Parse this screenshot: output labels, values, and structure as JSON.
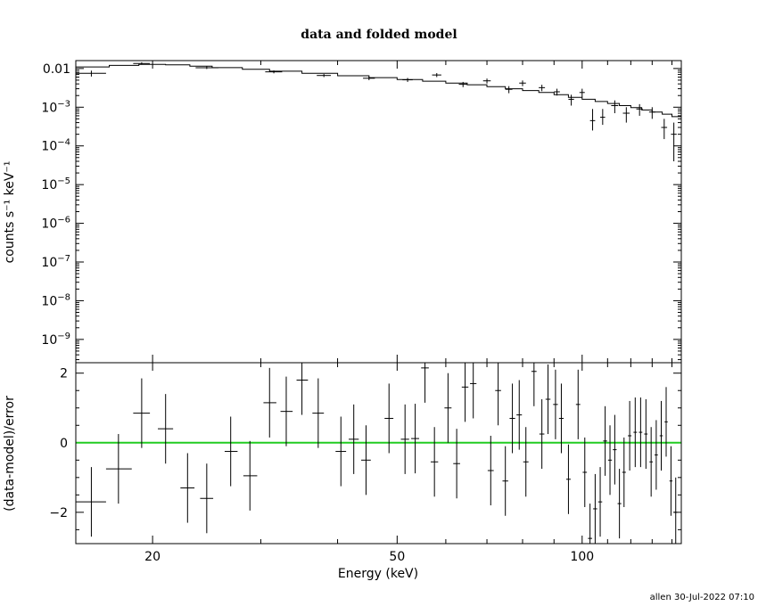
{
  "chart_data": [
    {
      "type": "scatter",
      "title": "data and folded model",
      "ylabel": "counts s⁻¹ keV⁻¹",
      "xlabel": "",
      "x_scale": "log",
      "y_scale": "log",
      "xlim": [
        15,
        145
      ],
      "ylim": [
        2.5e-10,
        0.016
      ],
      "y_ticks": [
        {
          "value": 0.01,
          "base": "0.01",
          "exp": ""
        },
        {
          "value": 0.001,
          "base": "10",
          "exp": "−3"
        },
        {
          "value": 0.0001,
          "base": "10",
          "exp": "−4"
        },
        {
          "value": 1e-05,
          "base": "10",
          "exp": "−5"
        },
        {
          "value": 1e-06,
          "base": "10",
          "exp": "−6"
        },
        {
          "value": 1e-07,
          "base": "10",
          "exp": "−7"
        },
        {
          "value": 1e-08,
          "base": "10",
          "exp": "−8"
        },
        {
          "value": 1e-09,
          "base": "10",
          "exp": "−9"
        }
      ],
      "series": [
        {
          "kind": "data",
          "points": [
            {
              "x": 15.9,
              "xlo": 15.0,
              "xhi": 16.8,
              "y": 0.0075,
              "ylo": 0.0062,
              "yhi": 0.0088
            },
            {
              "x": 19.2,
              "xlo": 18.6,
              "xhi": 19.8,
              "y": 0.0135,
              "ylo": 0.0125,
              "yhi": 0.0145
            },
            {
              "x": 24.5,
              "xlo": 23.5,
              "xhi": 25.6,
              "y": 0.0105,
              "ylo": 0.0097,
              "yhi": 0.0113
            },
            {
              "x": 31.5,
              "xlo": 30.5,
              "xhi": 32.5,
              "y": 0.0082,
              "ylo": 0.0075,
              "yhi": 0.0089
            },
            {
              "x": 38.0,
              "xlo": 37.0,
              "xhi": 39.0,
              "y": 0.0066,
              "ylo": 0.006,
              "yhi": 0.0072
            },
            {
              "x": 45.0,
              "xlo": 44.0,
              "xhi": 46.0,
              "y": 0.0056,
              "ylo": 0.005,
              "yhi": 0.0062
            },
            {
              "x": 52.0,
              "xlo": 51.0,
              "xhi": 53.0,
              "y": 0.0051,
              "ylo": 0.0045,
              "yhi": 0.0057
            },
            {
              "x": 58.0,
              "xlo": 57.0,
              "xhi": 59.0,
              "y": 0.0068,
              "ylo": 0.006,
              "yhi": 0.0076
            },
            {
              "x": 64.0,
              "xlo": 63.0,
              "xhi": 65.0,
              "y": 0.0039,
              "ylo": 0.0033,
              "yhi": 0.0045
            },
            {
              "x": 70.0,
              "xlo": 69.0,
              "xhi": 71.0,
              "y": 0.0048,
              "ylo": 0.0041,
              "yhi": 0.0055
            },
            {
              "x": 76.0,
              "xlo": 75.0,
              "xhi": 77.0,
              "y": 0.0029,
              "ylo": 0.0023,
              "yhi": 0.0035
            },
            {
              "x": 80.0,
              "xlo": 79.0,
              "xhi": 81.0,
              "y": 0.0042,
              "ylo": 0.0035,
              "yhi": 0.0049
            },
            {
              "x": 86.0,
              "xlo": 85.0,
              "xhi": 87.0,
              "y": 0.0032,
              "ylo": 0.0026,
              "yhi": 0.0038
            },
            {
              "x": 91.0,
              "xlo": 90.0,
              "xhi": 92.0,
              "y": 0.0025,
              "ylo": 0.002,
              "yhi": 0.003
            },
            {
              "x": 96.0,
              "xlo": 95.0,
              "xhi": 97.0,
              "y": 0.0016,
              "ylo": 0.0011,
              "yhi": 0.0021
            },
            {
              "x": 100.0,
              "xlo": 99.0,
              "xhi": 101.0,
              "y": 0.0024,
              "ylo": 0.0018,
              "yhi": 0.003
            },
            {
              "x": 104.0,
              "xlo": 103.0,
              "xhi": 105.0,
              "y": 0.00045,
              "ylo": 0.00025,
              "yhi": 0.0009
            },
            {
              "x": 108.0,
              "xlo": 107.0,
              "xhi": 109.0,
              "y": 0.00055,
              "ylo": 0.00035,
              "yhi": 0.0009
            },
            {
              "x": 113.0,
              "xlo": 111.5,
              "xhi": 114.5,
              "y": 0.0011,
              "ylo": 0.0007,
              "yhi": 0.0015
            },
            {
              "x": 118.0,
              "xlo": 116.5,
              "xhi": 119.5,
              "y": 0.0007,
              "ylo": 0.0004,
              "yhi": 0.001
            },
            {
              "x": 124.0,
              "xlo": 122.5,
              "xhi": 125.5,
              "y": 0.0009,
              "ylo": 0.0006,
              "yhi": 0.0012
            },
            {
              "x": 130.0,
              "xlo": 128.5,
              "xhi": 131.5,
              "y": 0.00075,
              "ylo": 0.0005,
              "yhi": 0.001
            },
            {
              "x": 136.0,
              "xlo": 134.5,
              "xhi": 137.5,
              "y": 0.0003,
              "ylo": 0.00015,
              "yhi": 0.0005
            },
            {
              "x": 141.0,
              "xlo": 139.5,
              "xhi": 142.5,
              "y": 0.0002,
              "ylo": 4e-05,
              "yhi": 0.0004
            }
          ]
        },
        {
          "kind": "model",
          "x": [
            15.0,
            17.0,
            19.0,
            21.0,
            23.0,
            25.0,
            28.0,
            31.0,
            35.0,
            40.0,
            45.0,
            50.0,
            55.0,
            60.0,
            65.0,
            70.0,
            75.0,
            80.0,
            85.0,
            90.0,
            95.0,
            100.0,
            105.0,
            110.0,
            115.0,
            120.0,
            125.0,
            130.0,
            135.0,
            140.0,
            145.0
          ],
          "y": [
            0.011,
            0.012,
            0.0128,
            0.0125,
            0.0115,
            0.0105,
            0.0095,
            0.0085,
            0.0075,
            0.0065,
            0.0058,
            0.0052,
            0.0047,
            0.0042,
            0.0038,
            0.0034,
            0.003,
            0.0027,
            0.0024,
            0.0021,
            0.0018,
            0.0016,
            0.0014,
            0.00125,
            0.0011,
            0.00098,
            0.00085,
            0.00075,
            0.00066,
            0.00057,
            0.0005
          ]
        }
      ]
    },
    {
      "type": "scatter",
      "ylabel": "(data-model)/error",
      "xlabel": "Energy (keV)",
      "x_scale": "log",
      "xlim": [
        15,
        145
      ],
      "ylim": [
        -2.9,
        2.3
      ],
      "y_ticks": [
        {
          "value": 2,
          "label": "2"
        },
        {
          "value": 0,
          "label": "0"
        },
        {
          "value": -2,
          "label": "−2"
        }
      ],
      "x_ticks": [
        {
          "value": 20,
          "label": "20"
        },
        {
          "value": 50,
          "label": "50"
        },
        {
          "value": 100,
          "label": "100"
        }
      ],
      "zero_line": {
        "y": 0,
        "color": "#22cc22"
      },
      "points": [
        {
          "x": 15.9,
          "xlo": 15.0,
          "xhi": 16.8,
          "y": -1.7,
          "ylo": -2.7,
          "yhi": -0.7
        },
        {
          "x": 17.6,
          "xlo": 16.8,
          "xhi": 18.5,
          "y": -0.75,
          "ylo": -1.75,
          "yhi": 0.25
        },
        {
          "x": 19.2,
          "xlo": 18.6,
          "xhi": 19.8,
          "y": 0.85,
          "ylo": -0.15,
          "yhi": 1.85
        },
        {
          "x": 21.0,
          "xlo": 20.4,
          "xhi": 21.6,
          "y": 0.4,
          "ylo": -0.6,
          "yhi": 1.4
        },
        {
          "x": 22.8,
          "xlo": 22.2,
          "xhi": 23.4,
          "y": -1.3,
          "ylo": -2.3,
          "yhi": -0.3
        },
        {
          "x": 24.5,
          "xlo": 23.9,
          "xhi": 25.1,
          "y": -1.6,
          "ylo": -2.6,
          "yhi": -0.6
        },
        {
          "x": 26.8,
          "xlo": 26.2,
          "xhi": 27.5,
          "y": -0.25,
          "ylo": -1.25,
          "yhi": 0.75
        },
        {
          "x": 28.8,
          "xlo": 28.1,
          "xhi": 29.6,
          "y": -0.95,
          "ylo": -1.95,
          "yhi": 0.05
        },
        {
          "x": 31.0,
          "xlo": 30.3,
          "xhi": 31.8,
          "y": 1.15,
          "ylo": 0.15,
          "yhi": 2.15
        },
        {
          "x": 33.0,
          "xlo": 32.3,
          "xhi": 33.8,
          "y": 0.9,
          "ylo": -0.1,
          "yhi": 1.9
        },
        {
          "x": 35.0,
          "xlo": 34.3,
          "xhi": 35.8,
          "y": 1.8,
          "ylo": 0.8,
          "yhi": 2.8
        },
        {
          "x": 37.2,
          "xlo": 36.4,
          "xhi": 38.0,
          "y": 0.85,
          "ylo": -0.15,
          "yhi": 1.85
        },
        {
          "x": 40.5,
          "xlo": 39.7,
          "xhi": 41.3,
          "y": -0.25,
          "ylo": -1.25,
          "yhi": 0.75
        },
        {
          "x": 42.5,
          "xlo": 41.7,
          "xhi": 43.3,
          "y": 0.1,
          "ylo": -0.9,
          "yhi": 1.1
        },
        {
          "x": 44.5,
          "xlo": 43.7,
          "xhi": 45.3,
          "y": -0.5,
          "ylo": -1.5,
          "yhi": 0.5
        },
        {
          "x": 48.5,
          "xlo": 47.7,
          "xhi": 49.3,
          "y": 0.7,
          "ylo": -0.3,
          "yhi": 1.7
        },
        {
          "x": 51.5,
          "xlo": 50.7,
          "xhi": 52.3,
          "y": 0.1,
          "ylo": -0.9,
          "yhi": 1.1
        },
        {
          "x": 53.5,
          "xlo": 52.7,
          "xhi": 54.3,
          "y": 0.12,
          "ylo": -0.88,
          "yhi": 1.12
        },
        {
          "x": 55.5,
          "xlo": 54.7,
          "xhi": 56.3,
          "y": 2.15,
          "ylo": 1.15,
          "yhi": 3.15
        },
        {
          "x": 57.5,
          "xlo": 56.7,
          "xhi": 58.3,
          "y": -0.55,
          "ylo": -1.55,
          "yhi": 0.45
        },
        {
          "x": 60.5,
          "xlo": 59.7,
          "xhi": 61.3,
          "y": 1.0,
          "ylo": 0.0,
          "yhi": 2.0
        },
        {
          "x": 62.5,
          "xlo": 61.7,
          "xhi": 63.3,
          "y": -0.6,
          "ylo": -1.6,
          "yhi": 0.4
        },
        {
          "x": 64.5,
          "xlo": 63.7,
          "xhi": 65.3,
          "y": 1.6,
          "ylo": 0.6,
          "yhi": 2.6
        },
        {
          "x": 66.5,
          "xlo": 65.7,
          "xhi": 67.3,
          "y": 1.7,
          "ylo": 0.7,
          "yhi": 2.7
        },
        {
          "x": 71.0,
          "xlo": 70.2,
          "xhi": 71.8,
          "y": -0.8,
          "ylo": -1.8,
          "yhi": 0.2
        },
        {
          "x": 73.0,
          "xlo": 72.2,
          "xhi": 73.8,
          "y": 1.5,
          "ylo": 0.5,
          "yhi": 2.5
        },
        {
          "x": 75.0,
          "xlo": 74.2,
          "xhi": 75.8,
          "y": -1.1,
          "ylo": -2.1,
          "yhi": -0.1
        },
        {
          "x": 77.0,
          "xlo": 76.2,
          "xhi": 77.8,
          "y": 0.7,
          "ylo": -0.3,
          "yhi": 1.7
        },
        {
          "x": 79.0,
          "xlo": 78.2,
          "xhi": 79.8,
          "y": 0.8,
          "ylo": -0.2,
          "yhi": 1.8
        },
        {
          "x": 81.0,
          "xlo": 80.2,
          "xhi": 81.8,
          "y": -0.55,
          "ylo": -1.55,
          "yhi": 0.45
        },
        {
          "x": 83.5,
          "xlo": 82.7,
          "xhi": 84.3,
          "y": 2.05,
          "ylo": 1.05,
          "yhi": 3.05
        },
        {
          "x": 86.0,
          "xlo": 85.2,
          "xhi": 86.8,
          "y": 0.25,
          "ylo": -0.75,
          "yhi": 1.25
        },
        {
          "x": 88.0,
          "xlo": 87.2,
          "xhi": 88.8,
          "y": 1.25,
          "ylo": 0.25,
          "yhi": 2.25
        },
        {
          "x": 90.5,
          "xlo": 89.7,
          "xhi": 91.3,
          "y": 1.1,
          "ylo": 0.1,
          "yhi": 2.1
        },
        {
          "x": 92.5,
          "xlo": 91.7,
          "xhi": 93.3,
          "y": 0.7,
          "ylo": -0.3,
          "yhi": 1.7
        },
        {
          "x": 95.0,
          "xlo": 94.2,
          "xhi": 95.8,
          "y": -1.05,
          "ylo": -2.05,
          "yhi": -0.05
        },
        {
          "x": 98.5,
          "xlo": 97.7,
          "xhi": 99.3,
          "y": 1.1,
          "ylo": 0.1,
          "yhi": 2.1
        },
        {
          "x": 101.0,
          "xlo": 100.2,
          "xhi": 101.8,
          "y": -0.85,
          "ylo": -1.85,
          "yhi": 0.15
        },
        {
          "x": 103.0,
          "xlo": 102.2,
          "xhi": 103.8,
          "y": -2.75,
          "ylo": -3.75,
          "yhi": -1.75
        },
        {
          "x": 105.0,
          "xlo": 104.2,
          "xhi": 105.8,
          "y": -1.9,
          "ylo": -2.9,
          "yhi": -0.9
        },
        {
          "x": 107.0,
          "xlo": 106.2,
          "xhi": 107.8,
          "y": -1.7,
          "ylo": -2.7,
          "yhi": -0.7
        },
        {
          "x": 109.0,
          "xlo": 108.2,
          "xhi": 109.8,
          "y": 0.05,
          "ylo": -0.95,
          "yhi": 1.05
        },
        {
          "x": 111.0,
          "xlo": 110.2,
          "xhi": 111.8,
          "y": -0.5,
          "ylo": -1.5,
          "yhi": 0.5
        },
        {
          "x": 113.0,
          "xlo": 112.2,
          "xhi": 113.8,
          "y": -0.2,
          "ylo": -1.2,
          "yhi": 0.8
        },
        {
          "x": 115.0,
          "xlo": 114.2,
          "xhi": 115.8,
          "y": -1.75,
          "ylo": -2.75,
          "yhi": -0.75
        },
        {
          "x": 117.0,
          "xlo": 116.2,
          "xhi": 117.8,
          "y": -0.85,
          "ylo": -1.85,
          "yhi": 0.15
        },
        {
          "x": 119.5,
          "xlo": 118.7,
          "xhi": 120.3,
          "y": 0.2,
          "ylo": -0.8,
          "yhi": 1.2
        },
        {
          "x": 122.0,
          "xlo": 121.2,
          "xhi": 122.8,
          "y": 0.3,
          "ylo": -0.7,
          "yhi": 1.3
        },
        {
          "x": 124.5,
          "xlo": 123.7,
          "xhi": 125.3,
          "y": 0.3,
          "ylo": -0.7,
          "yhi": 1.3
        },
        {
          "x": 127.0,
          "xlo": 126.2,
          "xhi": 127.8,
          "y": 0.25,
          "ylo": -0.75,
          "yhi": 1.25
        },
        {
          "x": 129.5,
          "xlo": 128.7,
          "xhi": 130.3,
          "y": -0.55,
          "ylo": -1.55,
          "yhi": 0.45
        },
        {
          "x": 132.0,
          "xlo": 131.2,
          "xhi": 132.8,
          "y": -0.35,
          "ylo": -1.35,
          "yhi": 0.65
        },
        {
          "x": 134.5,
          "xlo": 133.7,
          "xhi": 135.3,
          "y": 0.2,
          "ylo": -0.8,
          "yhi": 1.2
        },
        {
          "x": 137.0,
          "xlo": 136.2,
          "xhi": 137.8,
          "y": 0.6,
          "ylo": -0.4,
          "yhi": 1.6
        },
        {
          "x": 139.5,
          "xlo": 138.7,
          "xhi": 140.3,
          "y": -1.1,
          "ylo": -2.1,
          "yhi": -0.1
        },
        {
          "x": 142.0,
          "xlo": 141.2,
          "xhi": 142.8,
          "y": -2.0,
          "ylo": -3.0,
          "yhi": -1.0
        }
      ]
    }
  ],
  "footer": {
    "stamp": "allen 30-Jul-2022 07:10"
  }
}
